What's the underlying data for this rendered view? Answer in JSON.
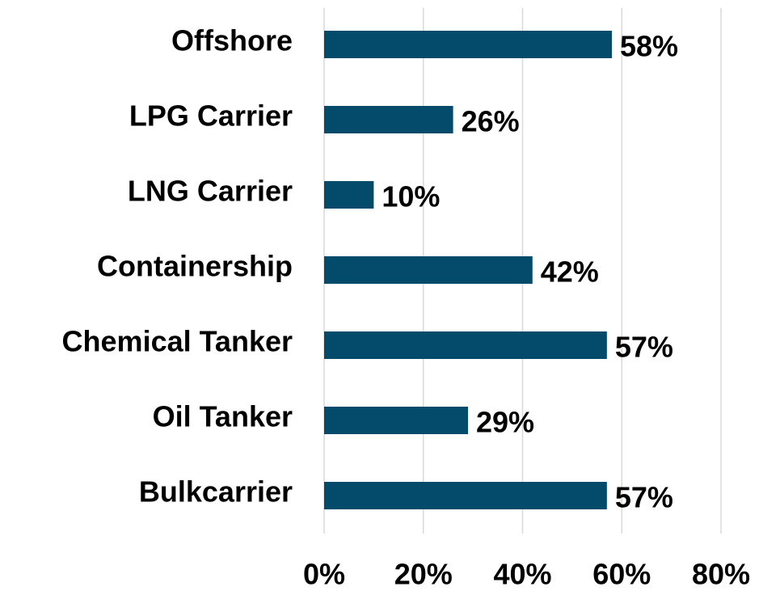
{
  "chart_data": {
    "type": "bar",
    "orientation": "horizontal",
    "categories": [
      "Offshore",
      "LPG Carrier",
      "LNG Carrier",
      "Containership",
      "Chemical Tanker",
      "Oil Tanker",
      "Bulkcarrier"
    ],
    "values": [
      58,
      26,
      10,
      42,
      57,
      29,
      57
    ],
    "value_labels": [
      "58%",
      "26%",
      "10%",
      "42%",
      "57%",
      "29%",
      "57%"
    ],
    "color": "#034a6b",
    "xlim": [
      0,
      80
    ],
    "xticks": [
      {
        "value": 0,
        "label": "0%"
      },
      {
        "value": 20,
        "label": "20%"
      },
      {
        "value": 40,
        "label": "40%"
      },
      {
        "value": 60,
        "label": "60%"
      },
      {
        "value": 80,
        "label": "80%"
      }
    ],
    "grid": true
  }
}
